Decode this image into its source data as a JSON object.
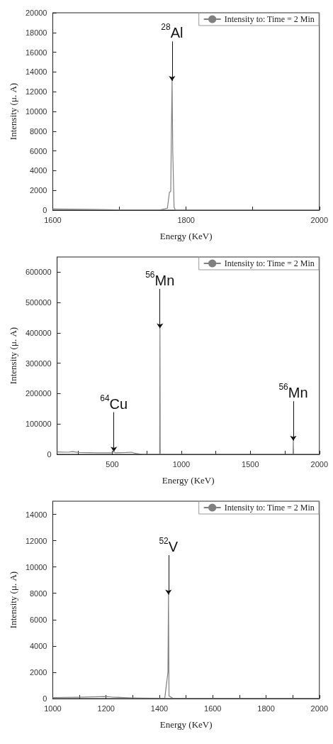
{
  "chart_data": [
    {
      "type": "line",
      "xlabel": "Energy (KeV)",
      "ylabel": "Intensity (μ. A)",
      "legend": "top right",
      "grid": false,
      "marker": "none",
      "line_style": "solid",
      "xlim": [
        1600,
        2000
      ],
      "xticks": [
        1600,
        {
          "value": 1700,
          "label": null
        },
        1800,
        {
          "value": 1900,
          "label": null
        },
        2000
      ],
      "ylim": [
        0,
        20000
      ],
      "yticks": [
        0,
        2000,
        4000,
        6000,
        8000,
        10000,
        12000,
        14000,
        16000,
        18000,
        20000
      ],
      "series": [
        {
          "name": "Intensity to: Time = 2 Min",
          "color": "#808080",
          "x": [
            1600,
            1650,
            1700,
            1760,
            1772,
            1775,
            1777,
            1778,
            1779,
            1780,
            1782,
            1784,
            1850,
            2000
          ],
          "values": [
            120,
            80,
            30,
            20,
            200,
            1800,
            1900,
            8000,
            13100,
            6000,
            300,
            0,
            0,
            0
          ]
        }
      ],
      "annotations": [
        {
          "text": "$^{28}$Al",
          "x": 1779,
          "y": 13100
        }
      ]
    },
    {
      "type": "line",
      "xlabel": "Energy (KeV)",
      "ylabel": "Intensity (μ. A)",
      "legend": "top right",
      "grid": false,
      "marker": "none",
      "line_style": "solid",
      "xlim": [
        100,
        2000
      ],
      "xticks": [
        {
          "value": 250,
          "label": null
        },
        500,
        {
          "value": 750,
          "label": null
        },
        1000,
        {
          "value": 1250,
          "label": null
        },
        1500,
        {
          "value": 1750,
          "label": null
        },
        2000
      ],
      "ylim": [
        0,
        650000
      ],
      "yticks": [
        0,
        100000,
        200000,
        300000,
        400000,
        500000,
        600000
      ],
      "series": [
        {
          "name": "Intensity to: Time = 2 Min",
          "color": "#808080",
          "x": [
            100,
            180,
            210,
            260,
            400,
            500,
            511,
            520,
            600,
            640,
            660,
            720,
            800,
            843,
            845,
            847,
            900,
            1200,
            1500,
            1600,
            1800,
            1809,
            1811,
            1813,
            1900,
            2000
          ],
          "values": [
            8000,
            7000,
            9000,
            6000,
            5000,
            5000,
            9000,
            5000,
            6000,
            7000,
            4000,
            0,
            0,
            0,
            415000,
            0,
            0,
            0,
            0,
            0,
            0,
            0,
            45000,
            0,
            0,
            0
          ]
        }
      ],
      "annotations": [
        {
          "text": "$^{64}$Cu",
          "x": 511,
          "y": 9000
        },
        {
          "text": "$^{56}$Mn",
          "x": 845,
          "y": 415000
        },
        {
          "text": "$^{56}$Mn",
          "x": 1811,
          "y": 45000
        }
      ]
    },
    {
      "type": "line",
      "xlabel": "Energy (KeV)",
      "ylabel": "Intensity (μ. A)",
      "legend": "top right",
      "grid": false,
      "marker": "none",
      "line_style": "solid",
      "xlim": [
        1000,
        2000
      ],
      "xticks": [
        1000,
        {
          "value": 1100,
          "label": null
        },
        1200,
        {
          "value": 1300,
          "label": null
        },
        1400,
        {
          "value": 1500,
          "label": null
        },
        1600,
        {
          "value": 1700,
          "label": null
        },
        1800,
        {
          "value": 1900,
          "label": null
        },
        2000
      ],
      "ylim": [
        0,
        15000
      ],
      "yticks": [
        0,
        2000,
        4000,
        6000,
        8000,
        10000,
        12000,
        14000
      ],
      "series": [
        {
          "name": "Intensity to: Time = 2 Min",
          "color": "#808080",
          "x": [
            1000,
            1100,
            1200,
            1220,
            1300,
            1340,
            1420,
            1432,
            1434,
            1436,
            1450,
            1600,
            2000
          ],
          "values": [
            80,
            100,
            150,
            120,
            50,
            30,
            20,
            2000,
            7900,
            200,
            20,
            20,
            20
          ]
        }
      ],
      "annotations": [
        {
          "text": "$^{52}$V",
          "x": 1434,
          "y": 7900
        }
      ]
    }
  ]
}
